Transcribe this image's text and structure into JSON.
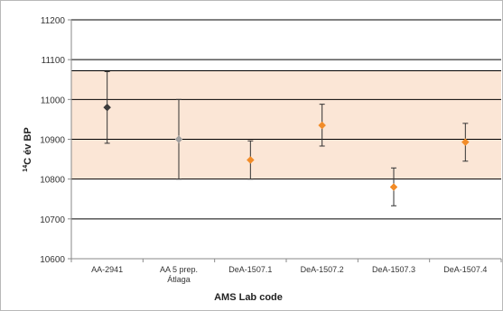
{
  "colors": {
    "band_fill": "#fbe6d6",
    "gridline": "#000000",
    "axis": "#8a8a8a",
    "series_dark": "#3c3c3c",
    "series_gray": "#a0a0a0",
    "series_orange": "#f28c28",
    "frame": "#b8b8b8"
  },
  "chart_data": {
    "type": "scatter",
    "title": "",
    "xlabel": "AMS Lab code",
    "ylabel_sup": "14",
    "ylabel_main": "C év BP",
    "ylim": [
      10600,
      11200
    ],
    "yticks": [
      10600,
      10700,
      10800,
      10900,
      11000,
      11100,
      11200
    ],
    "categories": [
      {
        "line1": "AA-2941",
        "line2": ""
      },
      {
        "line1": "AA 5 prep.",
        "line2": "Átlaga"
      },
      {
        "line1": "DeA-1507.1",
        "line2": ""
      },
      {
        "line1": "DeA-1507.2",
        "line2": ""
      },
      {
        "line1": "DeA-1507.3",
        "line2": ""
      },
      {
        "line1": "DeA-1507.4",
        "line2": ""
      }
    ],
    "points": [
      {
        "value": 10980,
        "low": 10890,
        "high": 11070,
        "marker": "series_dark"
      },
      {
        "value": 10900,
        "low": 10800,
        "high": 11000,
        "marker": "series_gray"
      },
      {
        "value": 10848,
        "low": 10800,
        "high": 10896,
        "marker": "series_orange"
      },
      {
        "value": 10935,
        "low": 10883,
        "high": 10988,
        "marker": "series_orange"
      },
      {
        "value": 10780,
        "low": 10733,
        "high": 10828,
        "marker": "series_orange"
      },
      {
        "value": 10893,
        "low": 10845,
        "high": 10940,
        "marker": "series_orange"
      }
    ],
    "shaded_band": {
      "low": 10800,
      "high": 11072
    },
    "grid": true,
    "legend": "none"
  }
}
